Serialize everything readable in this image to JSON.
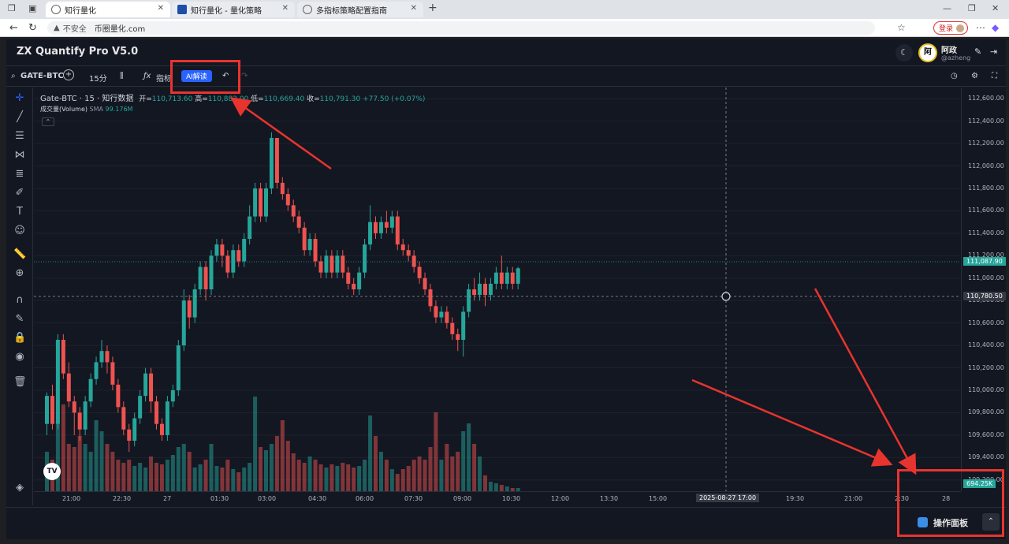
{
  "browser": {
    "tabs": [
      {
        "label": "知行量化",
        "active": true
      },
      {
        "label": "知行量化 - 量化策略",
        "active": false
      },
      {
        "label": "多指标策略配置指南",
        "active": false
      }
    ],
    "security_label": "不安全",
    "url": "币圈量化.com",
    "login_label": "登录"
  },
  "app": {
    "title": "ZX Quantify Pro V5.0",
    "user_avatar": "阿",
    "user_name": "阿政",
    "user_handle": "@azheng"
  },
  "toolbar": {
    "symbol": "GATE-BTC",
    "interval": "15分",
    "indicators_label": "指标",
    "ai_label": "AI解读"
  },
  "legend": {
    "title": "Gate-BTC · 15 · 知行数据",
    "open_label": "开=",
    "open": "110,713.60",
    "high_label": "高=",
    "high": "110,882.00",
    "low_label": "低=",
    "low": "110,669.40",
    "close_label": "收=",
    "close": "110,791.30",
    "change": "+77.50 (+0.07%)",
    "volume_label": "成交量(Volume)",
    "volume_sma_label": "SMA",
    "volume_sma_value": "99.176M"
  },
  "price_scale": {
    "labels": [
      "112,600.00",
      "112,400.00",
      "112,200.00",
      "112,000.00",
      "111,800.00",
      "111,600.00",
      "111,400.00",
      "111,200.00",
      "111,000.00",
      "110,800.00",
      "110,600.00",
      "110,400.00",
      "110,200.00",
      "110,000.00",
      "109,800.00",
      "109,600.00",
      "109,400.00",
      "109,200.00"
    ],
    "last_price": "111,087.90",
    "crosshair_price": "110,780.50",
    "volume_tag": "694.25K"
  },
  "time_scale": {
    "labels": [
      "21:00",
      "22:30",
      "27",
      "01:30",
      "03:00",
      "04:30",
      "06:00",
      "07:30",
      "09:00",
      "10:30",
      "12:00",
      "13:30",
      "15:00",
      "17:00",
      "19:30",
      "21:00",
      "2:30",
      "28"
    ],
    "crosshair_time": "2025-08-27"
  },
  "bottom": {
    "panel_label": "操作面板"
  },
  "colors": {
    "up": "#26a69a",
    "down": "#ef5350",
    "annotation": "#e8342e",
    "background": "#131722"
  },
  "chart_data": {
    "type": "candlestick",
    "title": "Gate-BTC · 15 · 知行数据",
    "ylim": [
      109100,
      112700
    ],
    "candles": [
      {
        "o": 109700,
        "c": 109950,
        "h": 109980,
        "l": 109600
      },
      {
        "o": 109950,
        "c": 109700,
        "h": 110050,
        "l": 109650
      },
      {
        "o": 109700,
        "c": 110450,
        "h": 110500,
        "l": 109650
      },
      {
        "o": 110450,
        "c": 110150,
        "h": 110500,
        "l": 110100
      },
      {
        "o": 110150,
        "c": 109900,
        "h": 110250,
        "l": 109850
      },
      {
        "o": 109900,
        "c": 109800,
        "h": 109950,
        "l": 109600
      },
      {
        "o": 109800,
        "c": 109650,
        "h": 109850,
        "l": 109550
      },
      {
        "o": 109650,
        "c": 109900,
        "h": 109950,
        "l": 109600
      },
      {
        "o": 109900,
        "c": 110100,
        "h": 110150,
        "l": 109850
      },
      {
        "o": 110100,
        "c": 110250,
        "h": 110300,
        "l": 110050
      },
      {
        "o": 110250,
        "c": 110350,
        "h": 110450,
        "l": 110200
      },
      {
        "o": 110350,
        "c": 110250,
        "h": 110400,
        "l": 110150
      },
      {
        "o": 110250,
        "c": 110050,
        "h": 110300,
        "l": 110000
      },
      {
        "o": 110050,
        "c": 109850,
        "h": 110100,
        "l": 109800
      },
      {
        "o": 109850,
        "c": 109650,
        "h": 109900,
        "l": 109600
      },
      {
        "o": 109650,
        "c": 109550,
        "h": 109700,
        "l": 109450
      },
      {
        "o": 109550,
        "c": 109750,
        "h": 109800,
        "l": 109500
      },
      {
        "o": 109750,
        "c": 109950,
        "h": 110000,
        "l": 109700
      },
      {
        "o": 109950,
        "c": 110150,
        "h": 110200,
        "l": 109900
      },
      {
        "o": 110150,
        "c": 109900,
        "h": 110200,
        "l": 109800
      },
      {
        "o": 109900,
        "c": 109700,
        "h": 109950,
        "l": 109650
      },
      {
        "o": 109700,
        "c": 109600,
        "h": 109750,
        "l": 109550
      },
      {
        "o": 109600,
        "c": 109900,
        "h": 109950,
        "l": 109550
      },
      {
        "o": 109900,
        "c": 110000,
        "h": 110050,
        "l": 109850
      },
      {
        "o": 110000,
        "c": 110400,
        "h": 110450,
        "l": 109950
      },
      {
        "o": 110400,
        "c": 110800,
        "h": 110900,
        "l": 110350
      },
      {
        "o": 110800,
        "c": 110650,
        "h": 110850,
        "l": 110550
      },
      {
        "o": 110650,
        "c": 110900,
        "h": 110950,
        "l": 110600
      },
      {
        "o": 110900,
        "c": 111100,
        "h": 111150,
        "l": 110850
      },
      {
        "o": 111100,
        "c": 110900,
        "h": 111150,
        "l": 110800
      },
      {
        "o": 110900,
        "c": 111200,
        "h": 111250,
        "l": 110850
      },
      {
        "o": 111200,
        "c": 111300,
        "h": 111350,
        "l": 111150
      },
      {
        "o": 111300,
        "c": 111200,
        "h": 111350,
        "l": 111100
      },
      {
        "o": 111200,
        "c": 111050,
        "h": 111250,
        "l": 111000
      },
      {
        "o": 111050,
        "c": 111250,
        "h": 111300,
        "l": 111000
      },
      {
        "o": 111250,
        "c": 111150,
        "h": 111300,
        "l": 111100
      },
      {
        "o": 111150,
        "c": 111350,
        "h": 111400,
        "l": 111100
      },
      {
        "o": 111350,
        "c": 111550,
        "h": 111650,
        "l": 111300
      },
      {
        "o": 111550,
        "c": 111800,
        "h": 111850,
        "l": 111500
      },
      {
        "o": 111800,
        "c": 111550,
        "h": 111850,
        "l": 111500
      },
      {
        "o": 111550,
        "c": 111800,
        "h": 111850,
        "l": 111500
      },
      {
        "o": 111800,
        "c": 112250,
        "h": 112300,
        "l": 111750
      },
      {
        "o": 112250,
        "c": 111850,
        "h": 112250,
        "l": 111800
      },
      {
        "o": 111850,
        "c": 111750,
        "h": 111900,
        "l": 111700
      },
      {
        "o": 111750,
        "c": 111650,
        "h": 111800,
        "l": 111600
      },
      {
        "o": 111650,
        "c": 111550,
        "h": 111700,
        "l": 111500
      },
      {
        "o": 111550,
        "c": 111450,
        "h": 111600,
        "l": 111400
      },
      {
        "o": 111450,
        "c": 111250,
        "h": 111500,
        "l": 111200
      },
      {
        "o": 111250,
        "c": 111350,
        "h": 111400,
        "l": 111200
      },
      {
        "o": 111350,
        "c": 111150,
        "h": 111400,
        "l": 111100
      },
      {
        "o": 111150,
        "c": 111050,
        "h": 111200,
        "l": 111000
      },
      {
        "o": 111050,
        "c": 111200,
        "h": 111250,
        "l": 111000
      },
      {
        "o": 111200,
        "c": 111050,
        "h": 111250,
        "l": 111000
      },
      {
        "o": 111050,
        "c": 111200,
        "h": 111250,
        "l": 111000
      },
      {
        "o": 111200,
        "c": 111050,
        "h": 111250,
        "l": 111000
      },
      {
        "o": 111050,
        "c": 110950,
        "h": 111100,
        "l": 110900
      },
      {
        "o": 110950,
        "c": 110900,
        "h": 111000,
        "l": 110850
      },
      {
        "o": 110900,
        "c": 111050,
        "h": 111100,
        "l": 110850
      },
      {
        "o": 111050,
        "c": 111300,
        "h": 111350,
        "l": 111000
      },
      {
        "o": 111300,
        "c": 111500,
        "h": 111650,
        "l": 111250
      },
      {
        "o": 111500,
        "c": 111400,
        "h": 111550,
        "l": 111350
      },
      {
        "o": 111400,
        "c": 111500,
        "h": 111550,
        "l": 111350
      },
      {
        "o": 111500,
        "c": 111450,
        "h": 111600,
        "l": 111400
      },
      {
        "o": 111450,
        "c": 111550,
        "h": 111600,
        "l": 111400
      },
      {
        "o": 111550,
        "c": 111300,
        "h": 111600,
        "l": 111250
      },
      {
        "o": 111300,
        "c": 111250,
        "h": 111350,
        "l": 111200
      },
      {
        "o": 111250,
        "c": 111200,
        "h": 111300,
        "l": 111150
      },
      {
        "o": 111200,
        "c": 111100,
        "h": 111250,
        "l": 111050
      },
      {
        "o": 111100,
        "c": 111000,
        "h": 111150,
        "l": 110950
      },
      {
        "o": 111000,
        "c": 110900,
        "h": 111050,
        "l": 110850
      },
      {
        "o": 110900,
        "c": 110750,
        "h": 110950,
        "l": 110700
      },
      {
        "o": 110750,
        "c": 110650,
        "h": 110800,
        "l": 110600
      },
      {
        "o": 110650,
        "c": 110700,
        "h": 110750,
        "l": 110600
      },
      {
        "o": 110700,
        "c": 110600,
        "h": 110750,
        "l": 110550
      },
      {
        "o": 110600,
        "c": 110500,
        "h": 110650,
        "l": 110450
      },
      {
        "o": 110500,
        "c": 110450,
        "h": 110550,
        "l": 110350
      },
      {
        "o": 110450,
        "c": 110700,
        "h": 110750,
        "l": 110300
      },
      {
        "o": 110700,
        "c": 110900,
        "h": 110950,
        "l": 110650
      },
      {
        "o": 110900,
        "c": 110850,
        "h": 111000,
        "l": 110800
      },
      {
        "o": 110850,
        "c": 110950,
        "h": 111050,
        "l": 110800
      },
      {
        "o": 110950,
        "c": 110850,
        "h": 111000,
        "l": 110750
      },
      {
        "o": 110850,
        "c": 110950,
        "h": 111000,
        "l": 110800
      },
      {
        "o": 110950,
        "c": 111050,
        "h": 111100,
        "l": 110900
      },
      {
        "o": 111050,
        "c": 110950,
        "h": 111200,
        "l": 110900
      },
      {
        "o": 110950,
        "c": 111050,
        "h": 111100,
        "l": 110900
      },
      {
        "o": 111050,
        "c": 110950,
        "h": 111100,
        "l": 110900
      },
      {
        "o": 110950,
        "c": 111088,
        "h": 111100,
        "l": 110900
      }
    ],
    "volume": [
      0.25,
      0.2,
      0.45,
      0.55,
      0.3,
      0.28,
      0.35,
      0.3,
      0.25,
      0.45,
      0.38,
      0.3,
      0.25,
      0.2,
      0.18,
      0.2,
      0.16,
      0.18,
      0.15,
      0.22,
      0.18,
      0.17,
      0.2,
      0.23,
      0.28,
      0.3,
      0.25,
      0.15,
      0.17,
      0.2,
      0.3,
      0.16,
      0.15,
      0.2,
      0.14,
      0.12,
      0.15,
      0.18,
      0.6,
      0.28,
      0.26,
      0.3,
      0.35,
      0.45,
      0.32,
      0.24,
      0.2,
      0.18,
      0.22,
      0.2,
      0.17,
      0.15,
      0.17,
      0.16,
      0.18,
      0.17,
      0.15,
      0.16,
      0.2,
      0.48,
      0.35,
      0.25,
      0.2,
      0.14,
      0.11,
      0.14,
      0.16,
      0.2,
      0.22,
      0.2,
      0.28,
      0.5,
      0.2,
      0.3,
      0.22,
      0.25,
      0.38,
      0.43,
      0.3,
      0.22,
      0.1,
      0.06,
      0.05,
      0.04,
      0.03,
      0.02,
      0.02
    ]
  }
}
